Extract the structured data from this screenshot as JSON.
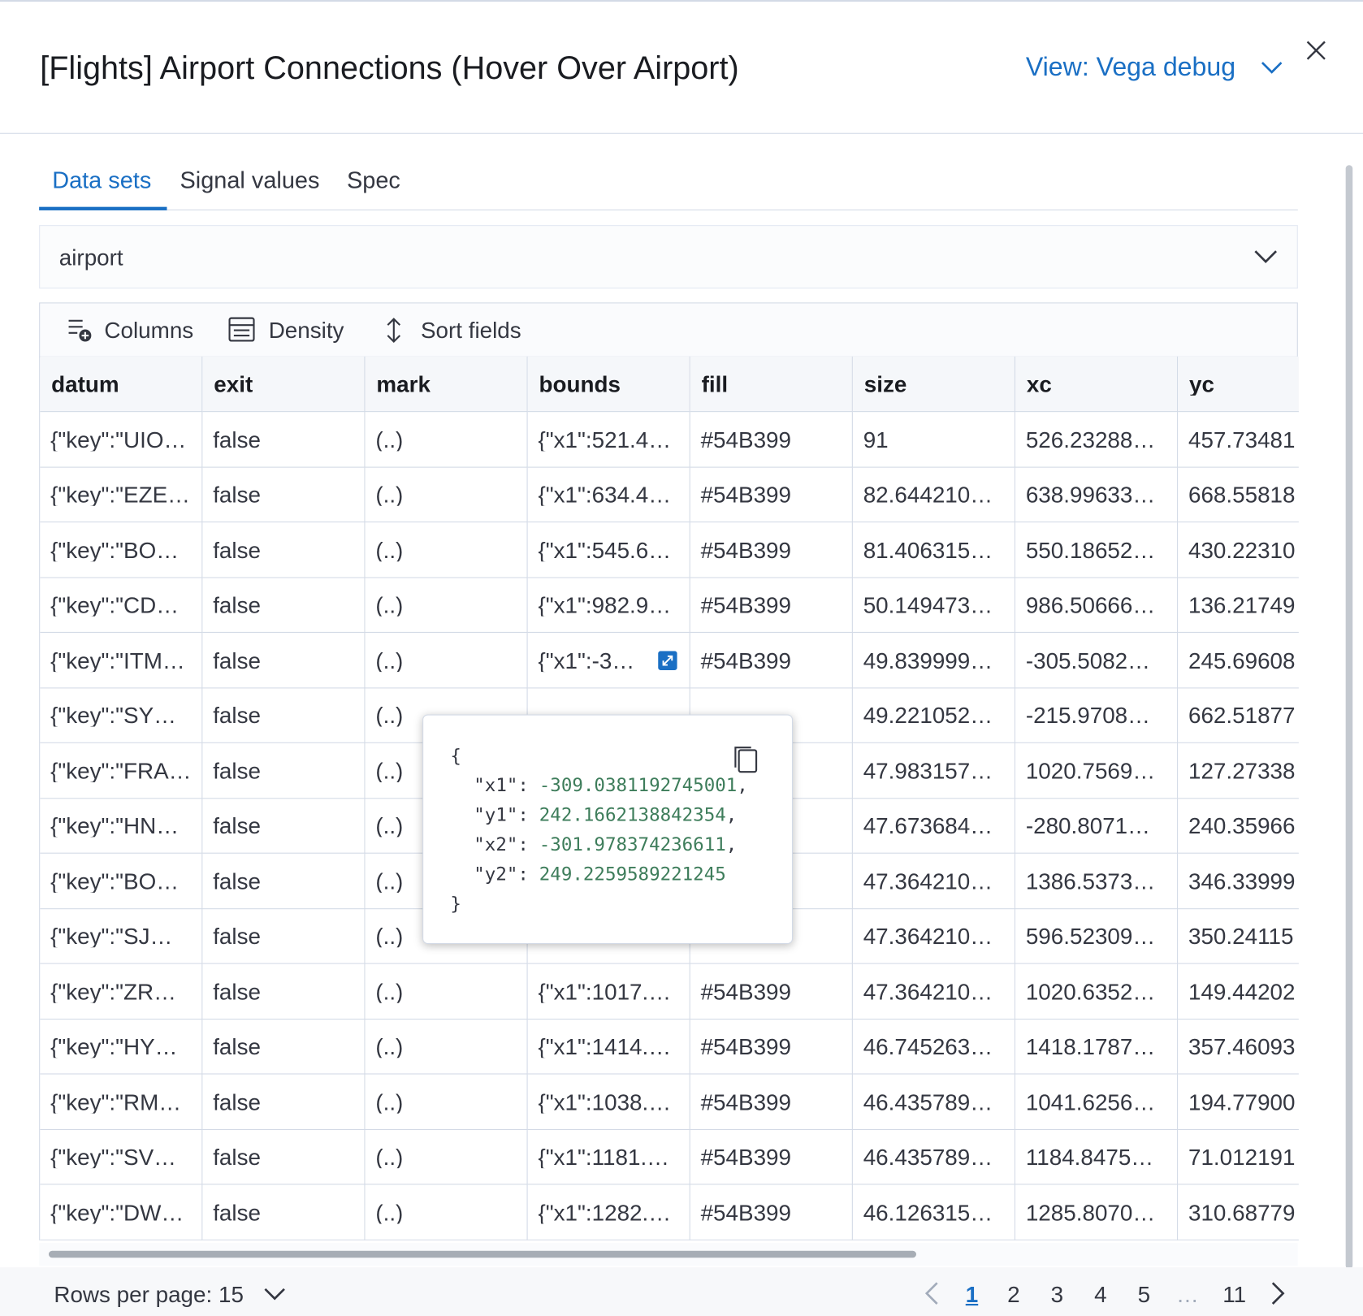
{
  "header": {
    "title": "[Flights] Airport Connections (Hover Over Airport)",
    "view": "View: Vega debug"
  },
  "tabs": [
    "Data sets",
    "Signal values",
    "Spec"
  ],
  "dataset_select": "airport",
  "toolbar": [
    "Columns",
    "Density",
    "Sort fields"
  ],
  "table": {
    "columns": [
      "datum",
      "exit",
      "mark",
      "bounds",
      "fill",
      "size",
      "xc",
      "yc"
    ],
    "rows": [
      [
        "{\"key\":\"UIO…",
        "false",
        "(..)",
        "{\"x1\":521.4…",
        "#54B399",
        "91",
        "526.23288…",
        "457.73481"
      ],
      [
        "{\"key\":\"EZE…",
        "false",
        "(..)",
        "{\"x1\":634.4…",
        "#54B399",
        "82.644210…",
        "638.99633…",
        "668.55818"
      ],
      [
        "{\"key\":\"BO…",
        "false",
        "(..)",
        "{\"x1\":545.6…",
        "#54B399",
        "81.406315…",
        "550.18652…",
        "430.22310"
      ],
      [
        "{\"key\":\"CD…",
        "false",
        "(..)",
        "{\"x1\":982.9…",
        "#54B399",
        "50.149473…",
        "986.50666…",
        "136.21749"
      ],
      [
        "{\"key\":\"ITM…",
        "false",
        "(..)",
        "{\"x1\":-3…",
        "#54B399",
        "49.839999…",
        "-305.5082…",
        "245.69608"
      ],
      [
        "{\"key\":\"SY…",
        "false",
        "(..)",
        null,
        null,
        "49.221052…",
        "-215.9708…",
        "662.51877"
      ],
      [
        "{\"key\":\"FRA…",
        "false",
        "(..)",
        null,
        null,
        "47.983157…",
        "1020.7569…",
        "127.27338"
      ],
      [
        "{\"key\":\"HN…",
        "false",
        "(..)",
        null,
        null,
        "47.673684…",
        "-280.8071…",
        "240.35966"
      ],
      [
        "{\"key\":\"BO…",
        "false",
        "(..)",
        null,
        null,
        "47.364210…",
        "1386.5373…",
        "346.33999"
      ],
      [
        "{\"key\":\"SJ…",
        "false",
        "(..)",
        null,
        null,
        "47.364210…",
        "596.52309…",
        "350.24115"
      ],
      [
        "{\"key\":\"ZR…",
        "false",
        "(..)",
        "{\"x1\":1017.…",
        "#54B399",
        "47.364210…",
        "1020.6352…",
        "149.44202"
      ],
      [
        "{\"key\":\"HY…",
        "false",
        "(..)",
        "{\"x1\":1414.…",
        "#54B399",
        "46.745263…",
        "1418.1787…",
        "357.46093"
      ],
      [
        "{\"key\":\"RM…",
        "false",
        "(..)",
        "{\"x1\":1038.…",
        "#54B399",
        "46.435789…",
        "1041.6256…",
        "194.77900"
      ],
      [
        "{\"key\":\"SV…",
        "false",
        "(..)",
        "{\"x1\":1181.…",
        "#54B399",
        "46.435789…",
        "1184.8475…",
        "71.012191"
      ],
      [
        "{\"key\":\"DW…",
        "false",
        "(..)",
        "{\"x1\":1282.…",
        "#54B399",
        "46.126315…",
        "1285.8070…",
        "310.68779"
      ]
    ]
  },
  "popover": {
    "open": "{",
    "close": "}",
    "entries": [
      {
        "key": "\"x1\":",
        "value": "-309.0381192745001",
        "comma": ","
      },
      {
        "key": "\"y1\":",
        "value": "242.1662138842354",
        "comma": ","
      },
      {
        "key": "\"x2\":",
        "value": "-301.978374236611",
        "comma": ","
      },
      {
        "key": "\"y2\":",
        "value": "249.2259589221245"
      }
    ]
  },
  "pagination": {
    "rows_per_page": "Rows per page: 15",
    "pages": [
      "1",
      "2",
      "3",
      "4",
      "5",
      "…",
      "11"
    ]
  }
}
